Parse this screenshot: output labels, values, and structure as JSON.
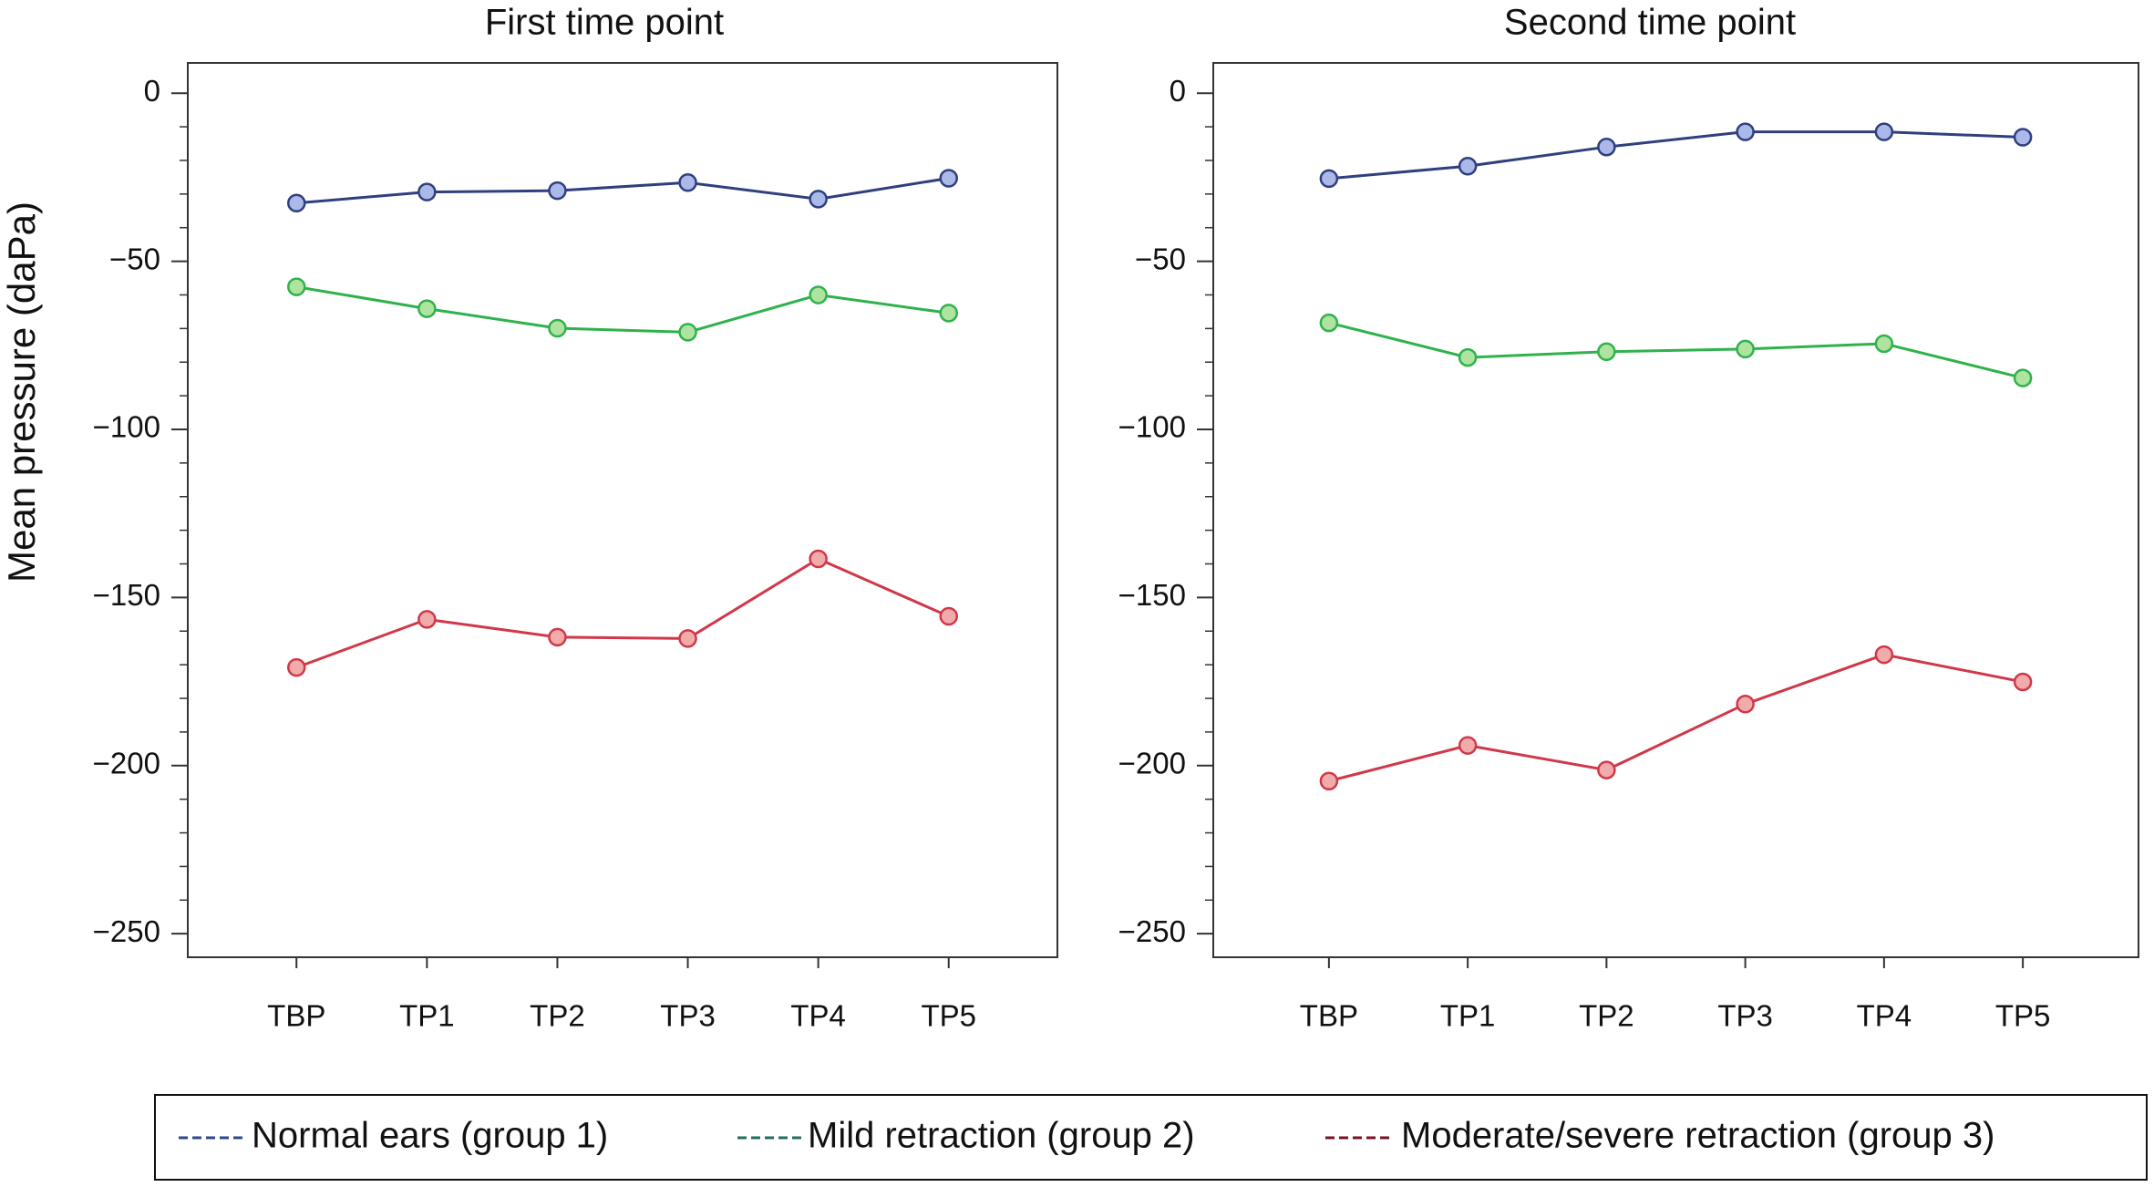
{
  "chart_data": [
    {
      "type": "line",
      "title": "First time point",
      "y_label": "Mean pressure (daPa)",
      "categories": [
        "TBP",
        "TP1",
        "TP2",
        "TP3",
        "TP4",
        "TP5"
      ],
      "ylim": [
        -257,
        9
      ],
      "yticks": [
        {
          "value": -250,
          "label": "−250"
        },
        {
          "value": -200,
          "label": "−200"
        },
        {
          "value": -150,
          "label": "−150"
        },
        {
          "value": -100,
          "label": "−100"
        },
        {
          "value": -50,
          "label": "−50"
        },
        0
      ],
      "minor_yticks": [
        -240,
        -230,
        -220,
        -210,
        -190,
        -180,
        -170,
        -160,
        -140,
        -130,
        -120,
        -110,
        -90,
        -80,
        -70,
        -60,
        -40,
        -30,
        -20,
        -10
      ],
      "series": [
        {
          "name": "Normal ears (group 1)",
          "color": "#2f3f7f",
          "marker_color": "#aab9e8",
          "legend_color": "#2a4a8a",
          "values": [
            -32.7,
            -29.4,
            -29,
            -26.6,
            -31.5,
            -25.3
          ]
        },
        {
          "name": "Mild retraction (group 2)",
          "color": "#2fb24c",
          "marker_color": "#aee4a0",
          "legend_color": "#1f6e5e",
          "values": [
            -57.6,
            -64.1,
            -69.9,
            -71.1,
            -60,
            -65.4
          ]
        },
        {
          "name": "Moderate/severe retraction (group 3)",
          "color": "#d0384a",
          "marker_color": "#f2abab",
          "legend_color": "#7a1020",
          "values": [
            -170.8,
            -156.5,
            -161.8,
            -162.2,
            -138.5,
            -155.6
          ]
        }
      ]
    },
    {
      "type": "line",
      "title": "Second time point",
      "categories": [
        "TBP",
        "TP1",
        "TP2",
        "TP3",
        "TP4",
        "TP5"
      ],
      "ylim": [
        -257,
        9
      ],
      "yticks": [
        {
          "value": -250,
          "label": "−250"
        },
        {
          "value": -200,
          "label": "−200"
        },
        {
          "value": -150,
          "label": "−150"
        },
        {
          "value": -100,
          "label": "−100"
        },
        {
          "value": -50,
          "label": "−50"
        },
        0
      ],
      "minor_yticks": [
        -240,
        -230,
        -220,
        -210,
        -190,
        -180,
        -170,
        -160,
        -140,
        -130,
        -120,
        -110,
        -90,
        -80,
        -70,
        -60,
        -40,
        -30,
        -20,
        -10
      ],
      "series": [
        {
          "color": "#2f3f7f",
          "marker_color": "#aab9e8",
          "values": [
            -25.4,
            -21.7,
            -16,
            -11.5,
            -11.5,
            -13.1
          ]
        },
        {
          "color": "#2fb24c",
          "marker_color": "#aee4a0",
          "values": [
            -68.3,
            -78.6,
            -76.9,
            -76.1,
            -74.5,
            -84.7
          ]
        },
        {
          "color": "#d0384a",
          "marker_color": "#f2abab",
          "values": [
            -204.6,
            -194,
            -201.3,
            -181.7,
            -167,
            -175.1
          ]
        }
      ]
    }
  ]
}
